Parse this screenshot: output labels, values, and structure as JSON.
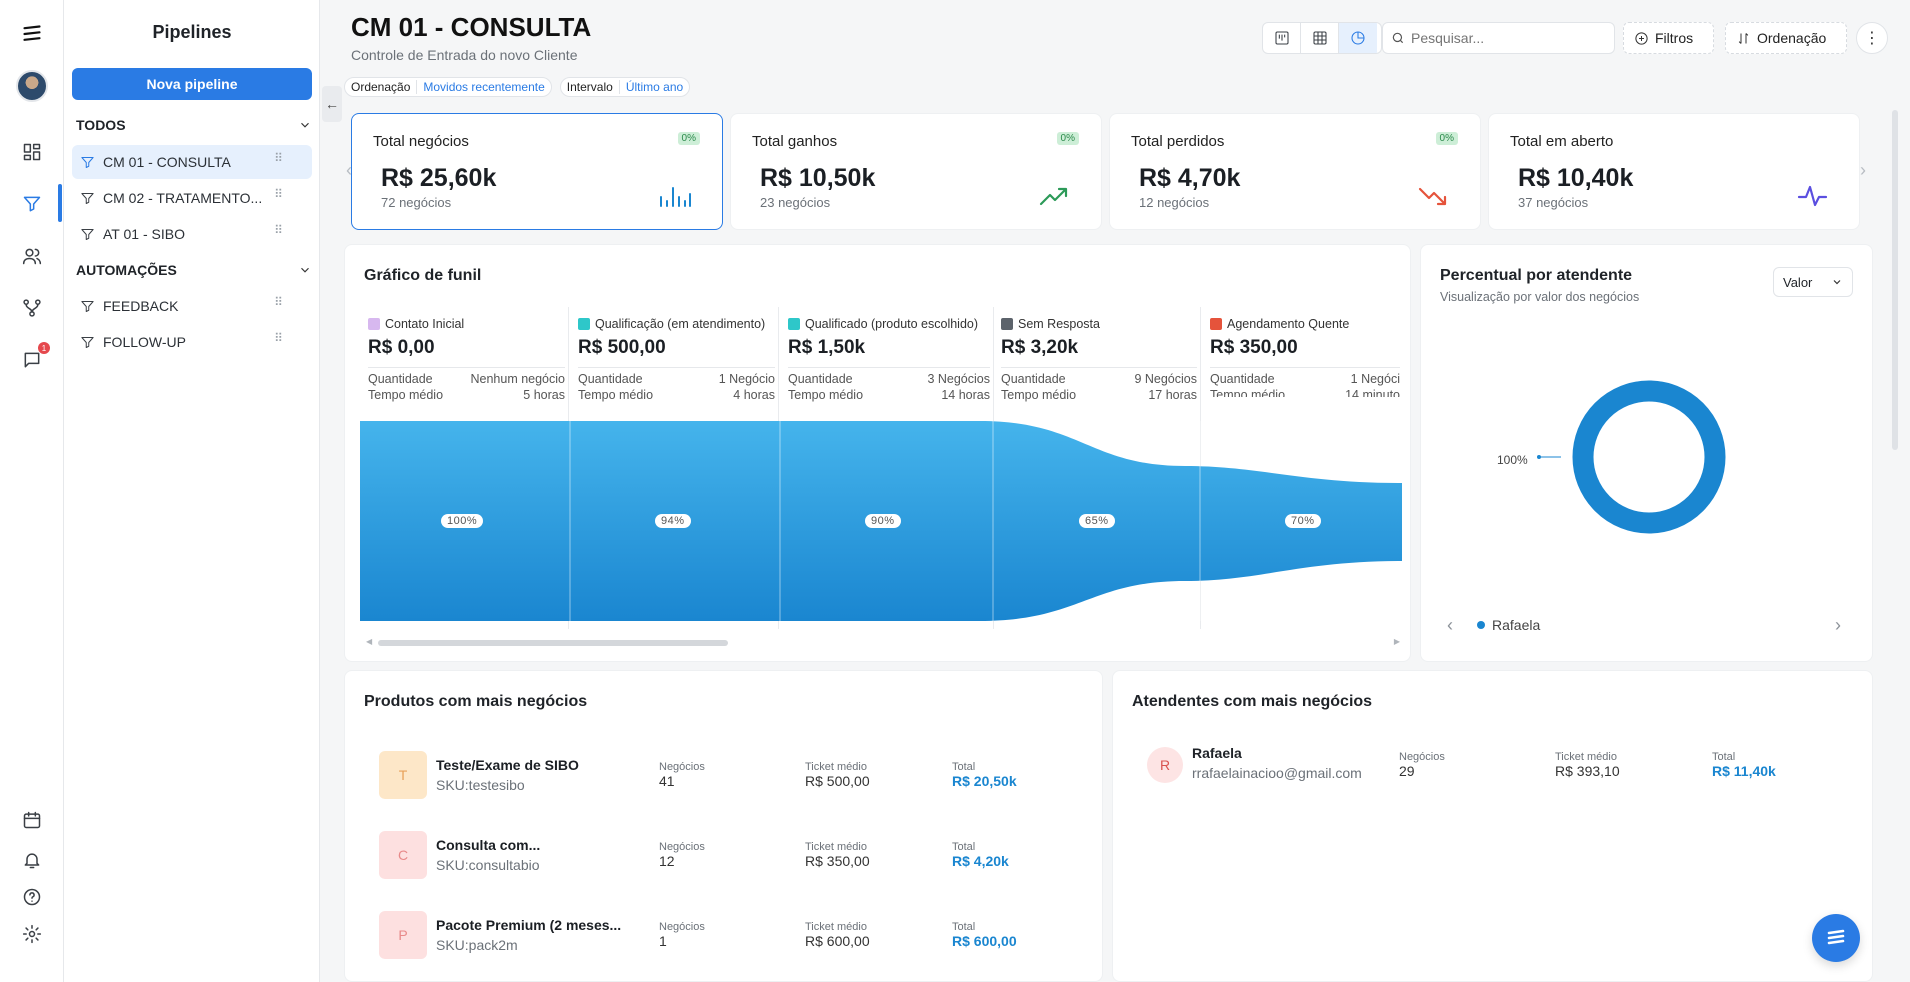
{
  "sidebar": {
    "title": "Pipelines",
    "new_button": "Nova pipeline",
    "sections": [
      {
        "label": "TODOS",
        "items": [
          "CM 01 - CONSULTA",
          "CM 02 - TRATAMENTO...",
          "AT 01 - SIBO"
        ]
      },
      {
        "label": "AUTOMAÇÕES",
        "items": [
          "FEEDBACK",
          "FOLLOW-UP"
        ]
      }
    ]
  },
  "rail": {
    "notification_badge": "1"
  },
  "header": {
    "title": "CM 01 - CONSULTA",
    "subtitle": "Controle de Entrada do novo Cliente",
    "chips": [
      {
        "label": "Ordenação",
        "value": "Movidos recentemente"
      },
      {
        "label": "Intervalo",
        "value": "Último ano"
      }
    ],
    "search_placeholder": "Pesquisar...",
    "filters": "Filtros",
    "order": "Ordenação"
  },
  "kpis": [
    {
      "label": "Total negócios",
      "pct": "0%",
      "value": "R$ 25,60k",
      "sub": "72 negócios",
      "icon": "bar-chart-icon",
      "color": "#1a86d0"
    },
    {
      "label": "Total ganhos",
      "pct": "0%",
      "value": "R$ 10,50k",
      "sub": "23 negócios",
      "icon": "trend-up-icon",
      "color": "#2c9a58"
    },
    {
      "label": "Total perdidos",
      "pct": "0%",
      "value": "R$ 4,70k",
      "sub": "12 negócios",
      "icon": "trend-down-icon",
      "color": "#e5533b"
    },
    {
      "label": "Total em aberto",
      "pct": "",
      "value": "R$ 10,40k",
      "sub": "37 negócios",
      "icon": "activity-icon",
      "color": "#5b4fe0"
    }
  ],
  "funnel": {
    "title": "Gráfico de funil",
    "qty_label": "Quantidade",
    "time_label": "Tempo médio",
    "stages": [
      {
        "name": "Contato Inicial",
        "color": "#d7b8ef",
        "value": "R$ 0,00",
        "qty": "Nenhum negócio",
        "time": "5 horas",
        "pct": "100%"
      },
      {
        "name": "Qualificação (em atendimento)",
        "color": "#2ec7c9",
        "value": "R$ 500,00",
        "qty": "1 Negócio",
        "time": "4 horas",
        "pct": "94%"
      },
      {
        "name": "Qualificado (produto escolhido)",
        "color": "#2ec7c9",
        "value": "R$ 1,50k",
        "qty": "3 Negócios",
        "time": "14 horas",
        "pct": "90%"
      },
      {
        "name": "Sem Resposta",
        "color": "#5c636b",
        "value": "R$ 3,20k",
        "qty": "9 Negócios",
        "time": "17 horas",
        "pct": "65%"
      },
      {
        "name": "Agendamento Quente",
        "color": "#e5533b",
        "value": "R$ 350,00",
        "qty": "1 Negóci",
        "time": "14 minuto",
        "pct": "70%"
      }
    ]
  },
  "donut": {
    "title": "Percentual por atendente",
    "subtitle": "Visualização por valor dos negócios",
    "select": "Valor",
    "label": "100%",
    "legend": "Rafaela",
    "color": "#1a86d0"
  },
  "products": {
    "title": "Produtos com mais negócios",
    "col_deals": "Negócios",
    "col_ticket": "Ticket médio",
    "col_total": "Total",
    "rows": [
      {
        "initial": "T",
        "bg": "#fde7c8",
        "fg": "#e8a25a",
        "name": "Teste/Exame de SIBO",
        "sku": "SKU:testesibo",
        "deals": "41",
        "ticket": "R$ 500,00",
        "total": "R$ 20,50k"
      },
      {
        "initial": "C",
        "bg": "#fde0e0",
        "fg": "#e88a8a",
        "name": "Consulta com...",
        "sku": "SKU:consultabio",
        "deals": "12",
        "ticket": "R$ 350,00",
        "total": "R$ 4,20k"
      },
      {
        "initial": "P",
        "bg": "#fde0e0",
        "fg": "#e88a8a",
        "name": "Pacote Premium (2 meses...",
        "sku": "SKU:pack2m",
        "deals": "1",
        "ticket": "R$ 600,00",
        "total": "R$ 600,00"
      }
    ]
  },
  "attendants": {
    "title": "Atendentes com mais negócios",
    "col_deals": "Negócios",
    "col_ticket": "Ticket médio",
    "col_total": "Total",
    "rows": [
      {
        "initial": "R",
        "name": "Rafaela",
        "email": "rrafaelainacioo@gmail.com",
        "deals": "29",
        "ticket": "R$ 393,10",
        "total": "R$ 11,40k"
      }
    ]
  }
}
